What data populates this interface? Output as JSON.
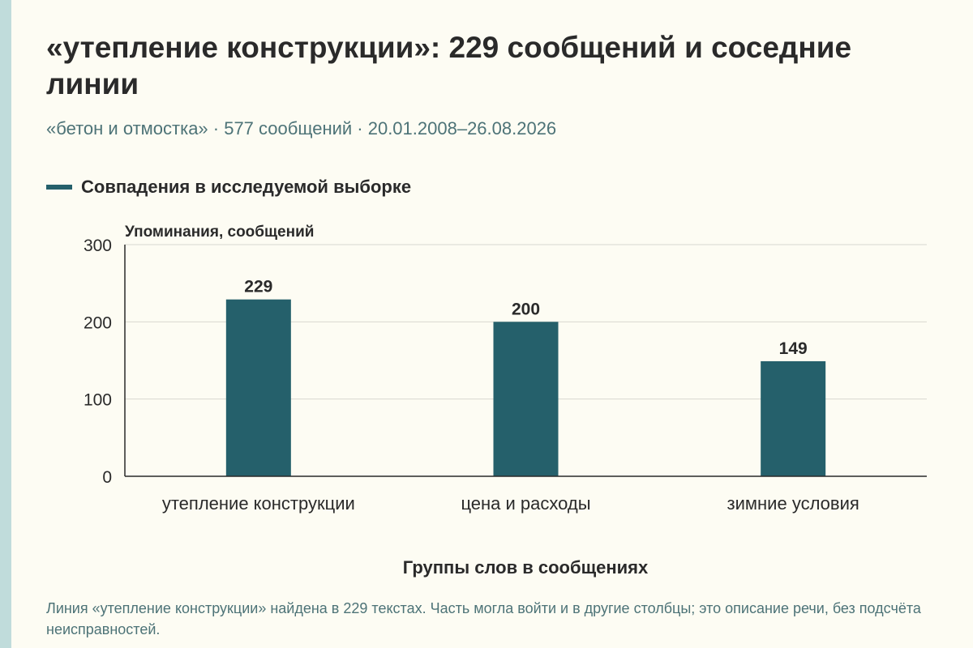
{
  "header": {
    "title": "«утепление конструкции»: 229 сообщений и соседние линии",
    "subtitle": "«бетон и отмостка» · 577 сообщений · 20.01.2008–26.08.2026"
  },
  "legend": {
    "label": "Совпадения в исследуемой выборке",
    "color": "#25606b"
  },
  "chart_data": {
    "type": "bar",
    "categories": [
      "утепление конструкции",
      "цена и расходы",
      "зимние условия"
    ],
    "series": [
      {
        "name": "Совпадения в исследуемой выборке",
        "values": [
          229,
          200,
          149
        ],
        "color": "#25606b"
      }
    ],
    "ylabel": "Упоминания, сообщений",
    "xlabel": "Группы слов в сообщениях",
    "ylim": [
      0,
      300
    ],
    "yticks": [
      0,
      100,
      200,
      300
    ],
    "grid": true,
    "data_labels": true,
    "legend_position": "top-left"
  },
  "note": "Линия «утепление конструкции» найдена в 229 текстах. Часть могла войти и в другие столбцы; это описание речи, без подсчёта неисправностей."
}
